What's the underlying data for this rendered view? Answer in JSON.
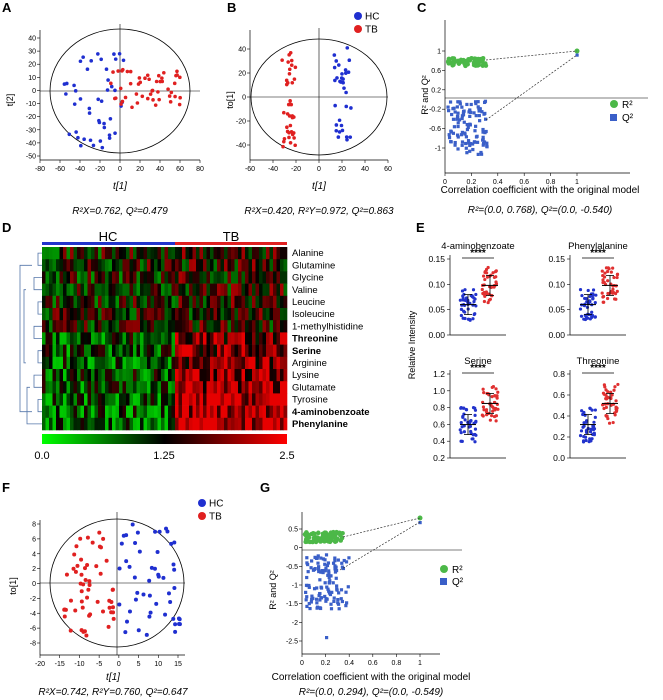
{
  "panels": {
    "A": {
      "label": "A",
      "xlabel": "t[1]",
      "ylabel": "t[2]",
      "xticks": [
        "-80",
        "-60",
        "-40",
        "-20",
        "0",
        "20",
        "40",
        "60",
        "80"
      ],
      "yticks": [
        "40",
        "30",
        "20",
        "10",
        "0",
        "-10",
        "-20",
        "-30",
        "-40",
        "-50"
      ],
      "caption": "R²X=0.762, Q²=0.479"
    },
    "B": {
      "label": "B",
      "xlabel": "t[1]",
      "ylabel": "to[1]",
      "xticks": [
        "-60",
        "-40",
        "-20",
        "0",
        "20",
        "40",
        "60"
      ],
      "yticks": [
        "40",
        "20",
        "0",
        "-20",
        "-40"
      ],
      "legend": [
        "HC",
        "TB"
      ],
      "caption": "R²X=0.420, R²Y=0.972, Q²=0.863"
    },
    "C": {
      "label": "C",
      "xlabel": "Correlation coefficient with the original model",
      "ylabel": "R² and Q²",
      "xticks": [
        "0",
        "0.2",
        "0.4",
        "0.6",
        "0.8",
        "1"
      ],
      "yticks": [
        "1",
        "0.6",
        "0.2",
        "-0.2",
        "-0.6",
        "-1"
      ],
      "legend": [
        "R²",
        "Q²"
      ],
      "caption": "R²=(0.0, 0.768), Q²=(0.0, -0.540)"
    },
    "D": {
      "label": "D",
      "group_hc": "HC",
      "group_tb": "TB",
      "metabolites": [
        "Alanine",
        "Glutamine",
        "Glycine",
        "Valine",
        "Leucine",
        "Isoleucine",
        "1-methylhistidine",
        "Threonine",
        "Serine",
        "Arginine",
        "Lysine",
        "Glutamate",
        "Tyrosine",
        "4-aminobenzoate",
        "Phenylanine"
      ],
      "colorbar_ticks": [
        "0.0",
        "1.25",
        "2.5"
      ]
    },
    "E": {
      "label": "E",
      "ylabel": "Relative Intensity",
      "significance": "****",
      "subplots": [
        {
          "title": "4-aminobenzoate",
          "yticks": [
            "0.15",
            "0.10",
            "0.05",
            "0.00"
          ]
        },
        {
          "title": "Phenylalanine",
          "yticks": [
            "0.15",
            "0.10",
            "0.05",
            "0.00"
          ]
        },
        {
          "title": "Serine",
          "yticks": [
            "1.2",
            "1.0",
            "0.8",
            "0.6",
            "0.4",
            "0.2"
          ]
        },
        {
          "title": "Threonine",
          "yticks": [
            "0.8",
            "0.6",
            "0.4",
            "0.2",
            "0.0"
          ]
        }
      ]
    },
    "F": {
      "label": "F",
      "xlabel": "t[1]",
      "ylabel": "to[1]",
      "xticks": [
        "-20",
        "-15",
        "-10",
        "-5",
        "0",
        "5",
        "10",
        "15"
      ],
      "yticks": [
        "8",
        "6",
        "4",
        "2",
        "0",
        "-2",
        "-4",
        "-6",
        "-8"
      ],
      "legend": [
        "HC",
        "TB"
      ],
      "caption": "R²X=0.742, R²Y=0.760, Q²=0.647"
    },
    "G": {
      "label": "G",
      "xlabel": "Correlation coefficient with the original model",
      "ylabel": "R² and Q²",
      "xticks": [
        "0",
        "0.2",
        "0.4",
        "0.6",
        "0.8",
        "1"
      ],
      "yticks": [
        "0.5",
        "0",
        "-0.5",
        "-1",
        "-1.5",
        "-2",
        "-2.5"
      ],
      "legend": [
        "R²",
        "Q²"
      ],
      "caption": "R²=(0.0, 0.294), Q²=(0.0, -0.549)"
    }
  },
  "colors": {
    "hc": "#1f2fd0",
    "tb": "#e02020",
    "r2": "#4cb848",
    "q2": "#3a5fc8",
    "bar_hc": "#2233cc",
    "bar_tb": "#e03030"
  }
}
